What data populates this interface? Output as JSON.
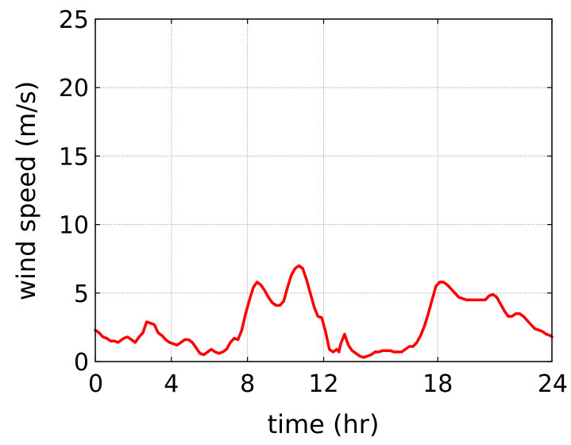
{
  "chart_data": {
    "type": "line",
    "title": "",
    "xlabel": "time (hr)",
    "ylabel": "wind speed (m/s)",
    "xlim": [
      0,
      24
    ],
    "ylim": [
      0,
      25
    ],
    "xticks": [
      0,
      4,
      8,
      12,
      18,
      24
    ],
    "yticks": [
      0,
      5,
      10,
      15,
      20,
      25
    ],
    "grid": true,
    "line_color": "#ff0000",
    "series": [
      {
        "x": [
          0,
          0.2,
          0.4,
          0.6,
          0.8,
          1.0,
          1.2,
          1.5,
          1.7,
          1.9,
          2.1,
          2.3,
          2.5,
          2.7,
          2.9,
          3.1,
          3.3,
          3.5,
          3.7,
          3.9,
          4.1,
          4.3,
          4.5,
          4.7,
          4.9,
          5.1,
          5.3,
          5.5,
          5.7,
          5.9,
          6.1,
          6.3,
          6.5,
          6.7,
          6.9,
          7.1,
          7.3,
          7.5,
          7.7,
          7.9,
          8.1,
          8.3,
          8.5,
          8.7,
          8.9,
          9.1,
          9.3,
          9.5,
          9.7,
          9.9,
          10.1,
          10.3,
          10.5,
          10.7,
          10.9,
          11.1,
          11.3,
          11.5,
          11.7,
          11.9,
          12.1,
          12.3,
          12.5,
          12.7,
          12.8,
          12.9,
          13.1,
          13.3,
          13.5,
          13.7,
          13.9,
          14.1,
          14.3,
          14.5,
          14.7,
          14.9,
          15.1,
          15.3,
          15.5,
          15.7,
          15.9,
          16.1,
          16.3,
          16.5,
          16.7,
          16.9,
          17.1,
          17.3,
          17.5,
          17.7,
          17.9,
          18.1,
          18.3,
          18.5,
          18.7,
          18.9,
          19.1,
          19.3,
          19.5,
          19.7,
          19.9,
          20.1,
          20.3,
          20.5,
          20.7,
          20.9,
          21.1,
          21.3,
          21.5,
          21.7,
          21.9,
          22.1,
          22.3,
          22.5,
          22.7,
          22.9,
          23.1,
          23.3,
          23.5,
          23.7,
          23.9,
          24
        ],
        "y": [
          2.3,
          2.1,
          1.8,
          1.7,
          1.5,
          1.5,
          1.4,
          1.7,
          1.8,
          1.6,
          1.4,
          1.8,
          2.1,
          2.9,
          2.8,
          2.7,
          2.1,
          1.9,
          1.6,
          1.4,
          1.3,
          1.2,
          1.4,
          1.6,
          1.6,
          1.4,
          1.0,
          0.6,
          0.5,
          0.7,
          0.9,
          0.7,
          0.6,
          0.7,
          0.9,
          1.4,
          1.7,
          1.6,
          2.3,
          3.5,
          4.5,
          5.4,
          5.8,
          5.6,
          5.2,
          4.7,
          4.3,
          4.1,
          4.1,
          4.4,
          5.4,
          6.3,
          6.8,
          7.0,
          6.8,
          6.0,
          5.0,
          4.0,
          3.3,
          3.2,
          2.2,
          0.9,
          0.7,
          0.9,
          0.7,
          1.3,
          2.0,
          1.2,
          0.8,
          0.6,
          0.4,
          0.3,
          0.4,
          0.5,
          0.7,
          0.7,
          0.8,
          0.8,
          0.8,
          0.7,
          0.7,
          0.7,
          0.9,
          1.1,
          1.1,
          1.4,
          1.9,
          2.6,
          3.5,
          4.5,
          5.5,
          5.8,
          5.8,
          5.6,
          5.3,
          5.0,
          4.7,
          4.6,
          4.5,
          4.5,
          4.5,
          4.5,
          4.5,
          4.5,
          4.8,
          4.9,
          4.7,
          4.2,
          3.7,
          3.3,
          3.3,
          3.5,
          3.5,
          3.3,
          3.0,
          2.7,
          2.4,
          2.3,
          2.2,
          2.0,
          1.9,
          1.8
        ]
      }
    ]
  }
}
